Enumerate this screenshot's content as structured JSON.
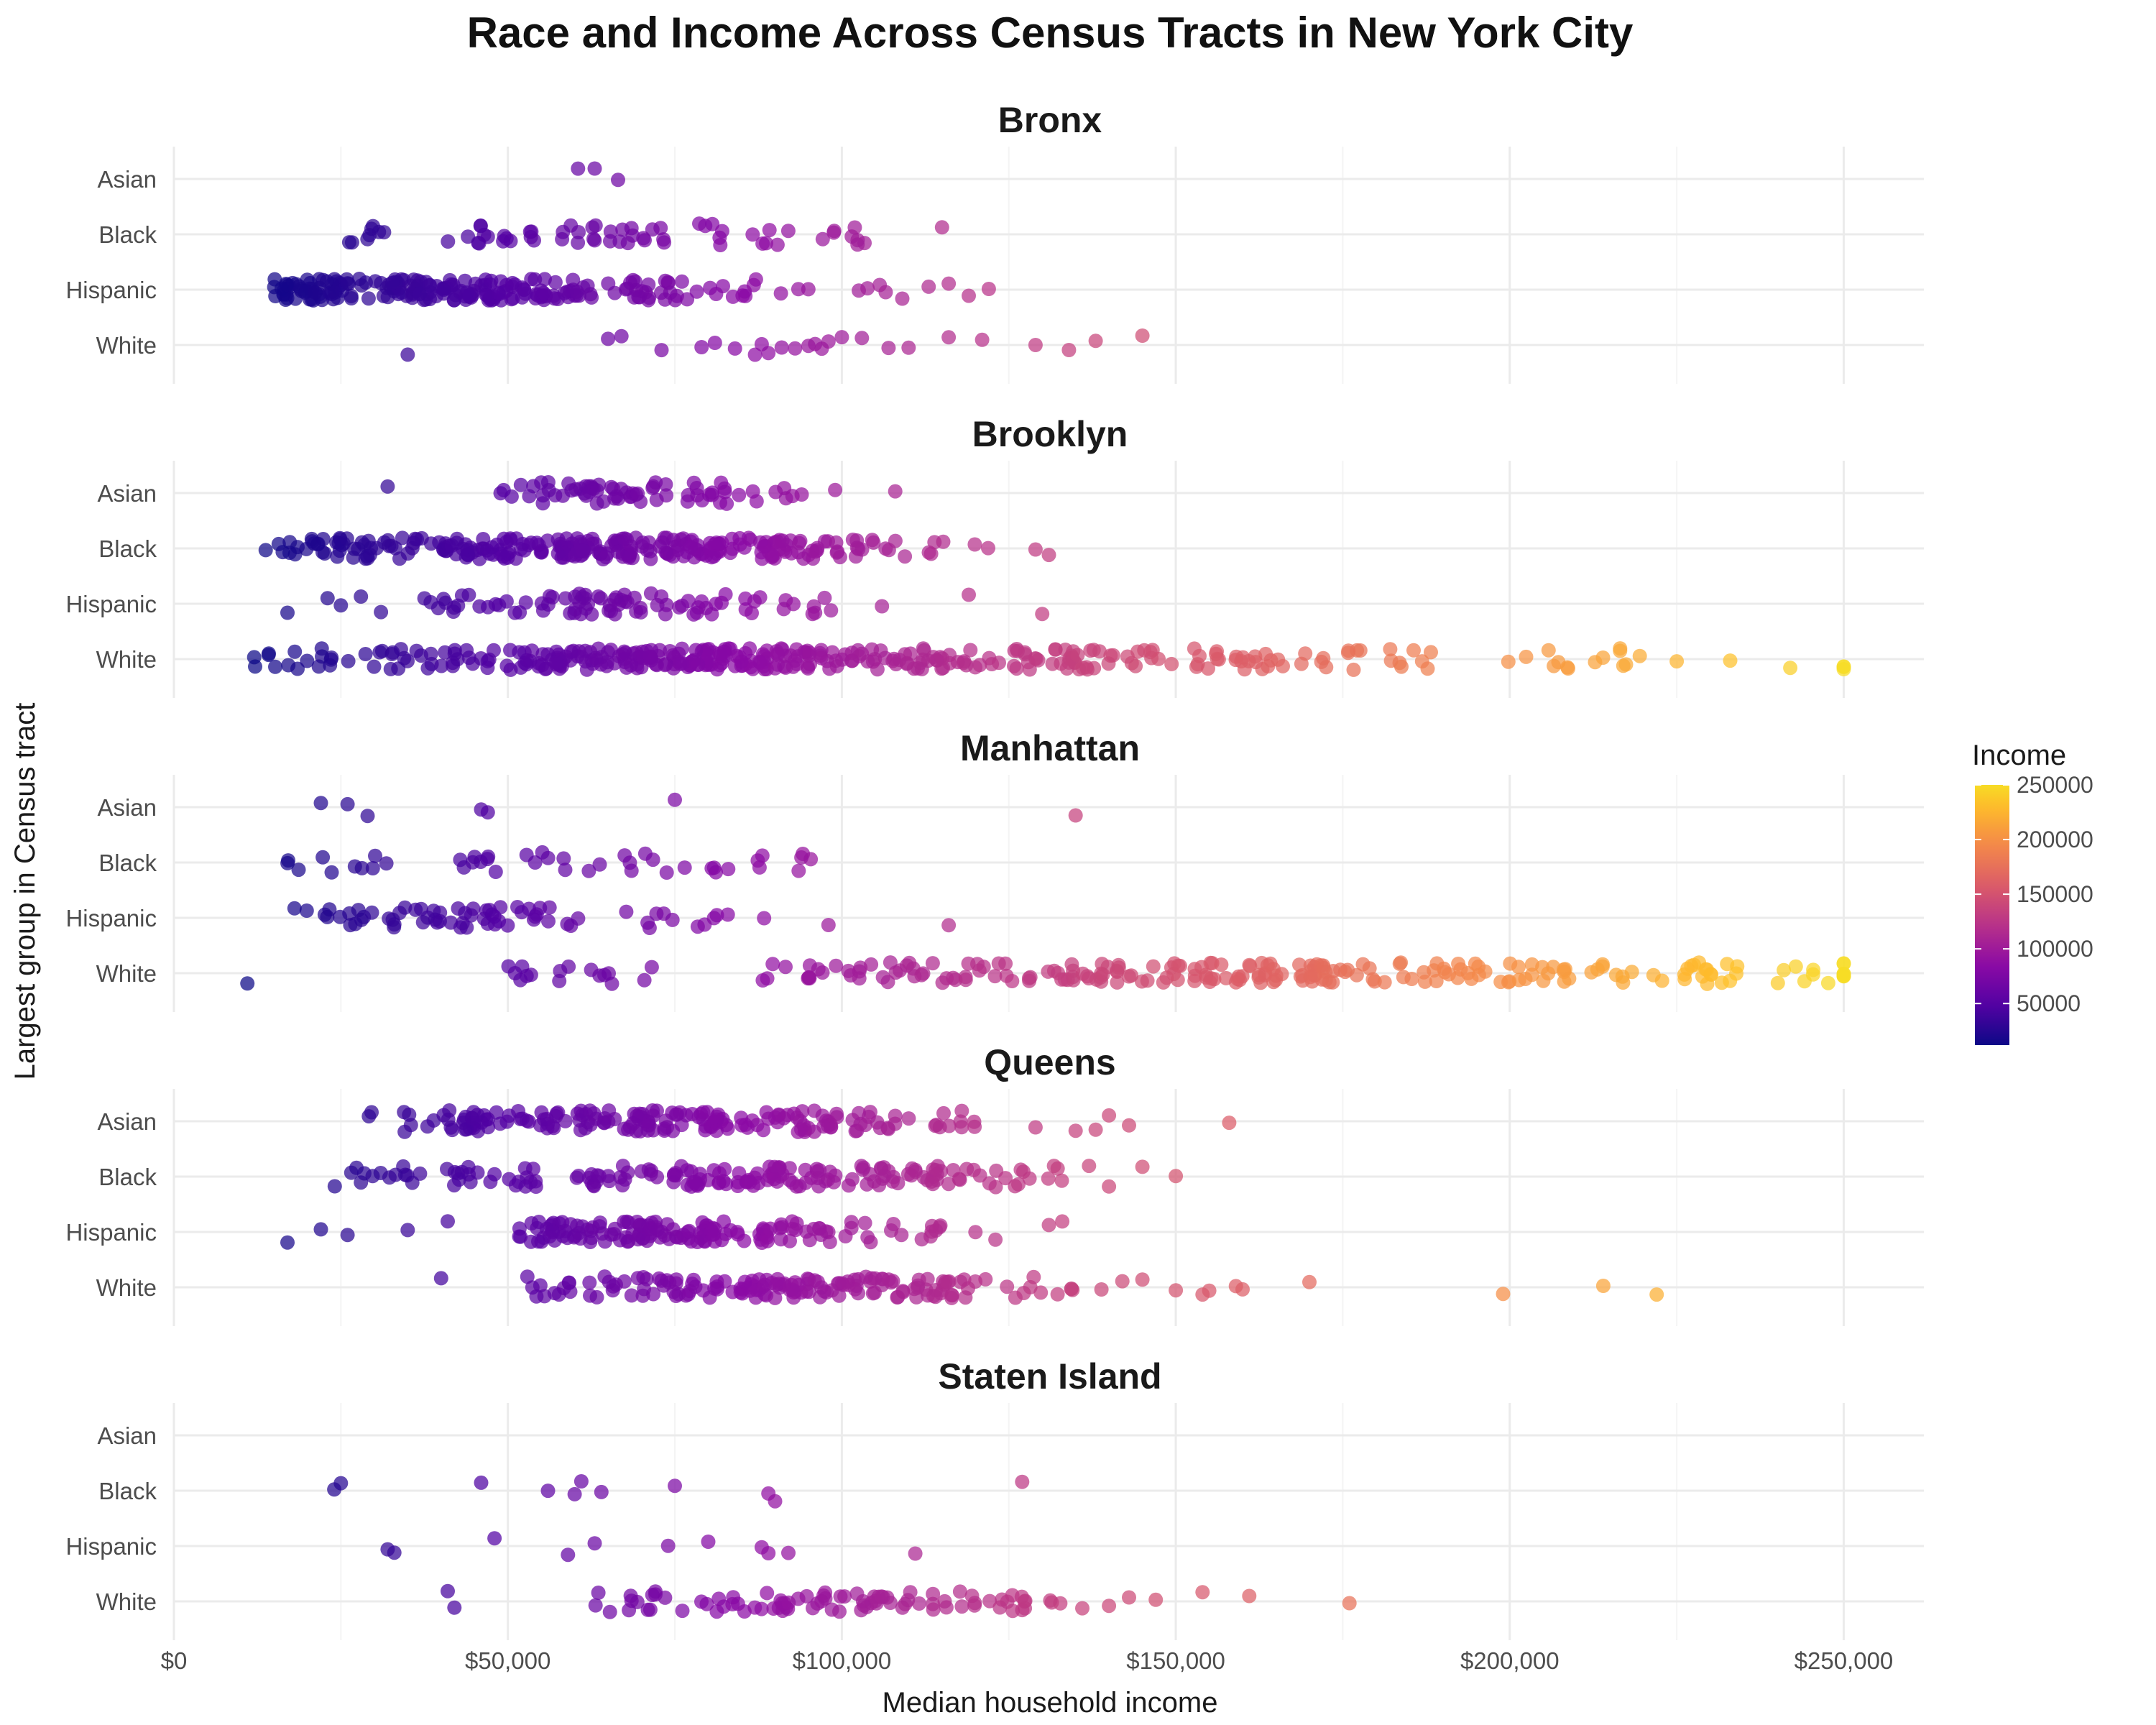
{
  "chart_data": {
    "type": "scatter",
    "title": "Race and Income Across Census Tracts in New York City",
    "xlabel": "Median household income",
    "ylabel": "Largest group in Census tract",
    "xlim": [
      0,
      262000
    ],
    "x_ticks": [
      0,
      50000,
      100000,
      150000,
      200000,
      250000
    ],
    "x_tick_labels": [
      "$0",
      "$50,000",
      "$100,000",
      "$150,000",
      "$200,000",
      "$250,000"
    ],
    "categories": [
      "Asian",
      "Black",
      "Hispanic",
      "White"
    ],
    "grid": true,
    "legend": {
      "title": "Income",
      "placement": "right",
      "min": 12000,
      "max": 250000,
      "ticks": [
        50000,
        100000,
        150000,
        200000,
        250000
      ],
      "tick_labels": [
        "50000",
        "100000",
        "150000",
        "200000",
        "250000"
      ],
      "colors": [
        "#0d0887",
        "#5302a3",
        "#8b0aa5",
        "#b83289",
        "#db5c68",
        "#f48849",
        "#febd2a",
        "#f0f921"
      ]
    },
    "facets": [
      {
        "name": "Bronx",
        "groups": {
          "Asian": {
            "points": [
              60500,
              63000,
              66500
            ]
          },
          "Black": {
            "ranges": [
              [
                26000,
                32000,
                8
              ],
              [
                40000,
                54000,
                16
              ],
              [
                58000,
                74000,
                22
              ],
              [
                76000,
                84000,
                6
              ],
              [
                85000,
                93000,
                6
              ],
              [
                96000,
                104000,
                8
              ]
            ],
            "points": [
              115000
            ]
          },
          "Hispanic": {
            "ranges": [
              [
                15000,
                30000,
                60
              ],
              [
                30000,
                50000,
                90
              ],
              [
                50000,
                62000,
                40
              ],
              [
                62000,
                76000,
                26
              ],
              [
                76000,
                90000,
                12
              ],
              [
                90000,
                110000,
                8
              ]
            ],
            "points": [
              113000,
              116000,
              119000,
              122000
            ]
          },
          "White": {
            "points": [
              35000,
              65000,
              67000,
              73000,
              79000,
              81000,
              84000,
              87000,
              88000,
              89000,
              91000,
              93000,
              95000,
              96000,
              97000,
              98000,
              100000,
              103000,
              107000,
              110000,
              116000,
              121000,
              129000,
              134000,
              138000,
              145000
            ]
          }
        }
      },
      {
        "name": "Brooklyn",
        "groups": {
          "Asian": {
            "ranges": [
              [
                48000,
                58000,
                12
              ],
              [
                58000,
                70000,
                30
              ],
              [
                70000,
                84000,
                20
              ],
              [
                84000,
                94000,
                8
              ]
            ],
            "points": [
              32000,
              99000,
              108000
            ]
          },
          "Black": {
            "ranges": [
              [
                13000,
                25000,
                22
              ],
              [
                25000,
                40000,
                30
              ],
              [
                40000,
                60000,
                70
              ],
              [
                60000,
                80000,
                80
              ],
              [
                80000,
                100000,
                60
              ],
              [
                100000,
                110000,
                12
              ],
              [
                110000,
                122000,
                6
              ]
            ],
            "points": [
              129000,
              131000
            ]
          },
          "Hispanic": {
            "ranges": [
              [
                37000,
                48000,
                12
              ],
              [
                48000,
                60000,
                14
              ],
              [
                60000,
                70000,
                28
              ],
              [
                70000,
                82000,
                16
              ],
              [
                82000,
                92000,
                8
              ],
              [
                92000,
                100000,
                6
              ]
            ],
            "points": [
              17000,
              23000,
              25000,
              28000,
              31000,
              106000,
              119000,
              130000
            ]
          },
          "White": {
            "ranges": [
              [
                12000,
                30000,
                18
              ],
              [
                30000,
                50000,
                30
              ],
              [
                50000,
                70000,
                70
              ],
              [
                70000,
                90000,
                80
              ],
              [
                90000,
                110000,
                55
              ],
              [
                110000,
                130000,
                40
              ],
              [
                130000,
                150000,
                35
              ],
              [
                150000,
                170000,
                25
              ],
              [
                170000,
                190000,
                16
              ],
              [
                190000,
                220000,
                14
              ]
            ],
            "points": [
              225000,
              233000,
              242000,
              250000,
              250000,
              250000
            ]
          }
        }
      },
      {
        "name": "Manhattan",
        "groups": {
          "Asian": {
            "points": [
              22000,
              26000,
              29000,
              46000,
              47000,
              75000,
              135000
            ]
          },
          "Black": {
            "ranges": [
              [
                17000,
                34000,
                10
              ],
              [
                40000,
                58000,
                12
              ],
              [
                58000,
                76000,
                10
              ],
              [
                76000,
                98000,
                12
              ]
            ]
          },
          "Hispanic": {
            "ranges": [
              [
                18000,
                34000,
                18
              ],
              [
                34000,
                50000,
                28
              ],
              [
                50000,
                66000,
                12
              ],
              [
                66000,
                80000,
                8
              ],
              [
                80000,
                90000,
                4
              ]
            ],
            "points": [
              98000,
              116000
            ]
          },
          "White": {
            "ranges": [
              [
                50000,
                75000,
                16
              ],
              [
                88000,
                110000,
                24
              ],
              [
                110000,
                130000,
                24
              ],
              [
                130000,
                150000,
                35
              ],
              [
                150000,
                170000,
                40
              ],
              [
                170000,
                190000,
                35
              ],
              [
                190000,
                210000,
                30
              ],
              [
                210000,
                230000,
                20
              ],
              [
                230000,
                248000,
                14
              ]
            ],
            "points": [
              11000,
              250000,
              250000,
              250000,
              250000,
              250000,
              250000,
              250000
            ]
          }
        }
      },
      {
        "name": "Queens",
        "groups": {
          "Asian": {
            "ranges": [
              [
                28000,
                40000,
                8
              ],
              [
                40000,
                60000,
                45
              ],
              [
                60000,
                80000,
                60
              ],
              [
                80000,
                100000,
                50
              ],
              [
                100000,
                120000,
                25
              ]
            ],
            "points": [
              129000,
              135000,
              138000,
              140000,
              143000,
              158000
            ]
          },
          "Black": {
            "ranges": [
              [
                24000,
                40000,
                14
              ],
              [
                40000,
                60000,
                22
              ],
              [
                60000,
                80000,
                40
              ],
              [
                80000,
                100000,
                50
              ],
              [
                100000,
                120000,
                40
              ],
              [
                120000,
                134000,
                14
              ]
            ],
            "points": [
              137000,
              140000,
              145000,
              150000
            ]
          },
          "Hispanic": {
            "ranges": [
              [
                50000,
                65000,
                40
              ],
              [
                65000,
                80000,
                55
              ],
              [
                80000,
                95000,
                35
              ],
              [
                95000,
                105000,
                14
              ],
              [
                105000,
                116000,
                10
              ]
            ],
            "points": [
              17000,
              22000,
              26000,
              35000,
              41000,
              120000,
              123000,
              131000,
              133000
            ]
          },
          "White": {
            "ranges": [
              [
                52000,
                70000,
                22
              ],
              [
                70000,
                90000,
                50
              ],
              [
                90000,
                110000,
                55
              ],
              [
                110000,
                120000,
                26
              ],
              [
                120000,
                140000,
                12
              ]
            ],
            "points": [
              40000,
              142000,
              145000,
              150000,
              154000,
              155000,
              159000,
              160000,
              170000,
              199000,
              214000,
              222000
            ]
          }
        }
      },
      {
        "name": "Staten Island",
        "groups": {
          "Asian": {
            "points": []
          },
          "Black": {
            "points": [
              24000,
              25000,
              46000,
              56000,
              60000,
              61000,
              64000,
              75000,
              89000,
              90000,
              127000
            ]
          },
          "Hispanic": {
            "points": [
              32000,
              33000,
              48000,
              59000,
              63000,
              74000,
              80000,
              88000,
              89000,
              92000,
              111000
            ]
          },
          "White": {
            "ranges": [
              [
                62000,
                80000,
                16
              ],
              [
                80000,
                100000,
                30
              ],
              [
                100000,
                120000,
                30
              ],
              [
                120000,
                134000,
                14
              ]
            ],
            "points": [
              41000,
              42000,
              136000,
              140000,
              143000,
              147000,
              154000,
              161000,
              176000
            ]
          }
        }
      }
    ]
  }
}
